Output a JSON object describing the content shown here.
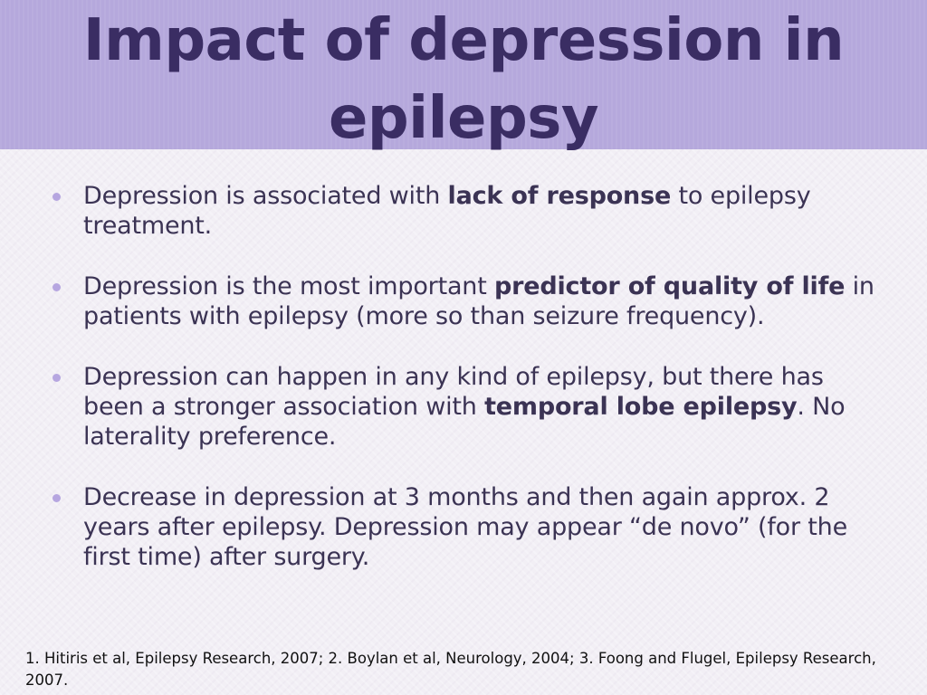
{
  "slide": {
    "title": "Impact of depression in epilepsy",
    "bullets": [
      {
        "before": "Depression is associated with ",
        "bold": "lack of response",
        "after": " to epilepsy treatment."
      },
      {
        "before": "Depression is the most important ",
        "bold": "predictor of quality of life",
        "after": " in patients with epilepsy (more so than seizure frequency)."
      },
      {
        "before": "Depression can happen in any kind of epilepsy, but there has been a stronger association with ",
        "bold": "temporal lobe epilepsy",
        "after": ". No laterality preference."
      },
      {
        "text": "Decrease in depression at 3 months and then again approx. 2 years after epilepsy. Depression may appear “de novo” (for the first time) after surgery."
      }
    ],
    "footnote": "1. Hitiris et al, Epilepsy Research, 2007; 2. Boylan et al, Neurology, 2004; 3. Foong and Flugel, Epilepsy Research, 2007."
  },
  "colors": {
    "title_band": "#b5a8dc",
    "title_text": "#3a2d63",
    "body_text": "#3b3354",
    "bullet_dot": "#b6a6e0",
    "background": "#f2eff5"
  }
}
